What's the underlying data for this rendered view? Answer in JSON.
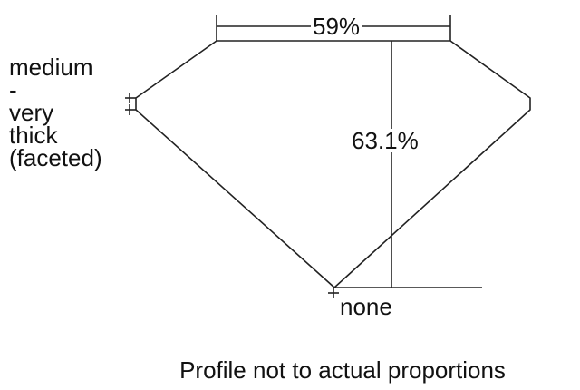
{
  "diagram": {
    "table_percent": "59%",
    "depth_percent": "63.1%",
    "girdle_label": "medium\n-\nvery\nthick\n(faceted)",
    "culet_label": "none",
    "note": "Profile not to actual proportions",
    "line_color": "#222222"
  }
}
